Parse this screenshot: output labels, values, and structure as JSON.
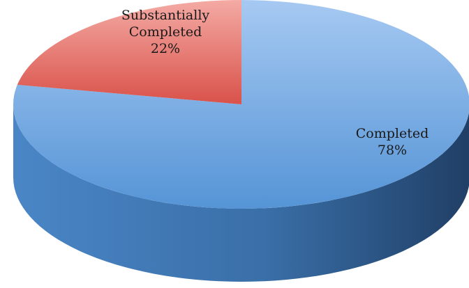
{
  "chart_data": {
    "type": "pie",
    "style": "3d",
    "slices": [
      {
        "label_lines": [
          "Completed"
        ],
        "percent_label": "78%",
        "value": 78,
        "color": "#5b9bd5"
      },
      {
        "label_lines": [
          "Substantially",
          "Completed"
        ],
        "percent_label": "22%",
        "value": 22,
        "color": "#e06258"
      }
    ],
    "start_angle_deg": 270,
    "direction": "clockwise",
    "legend": "none"
  }
}
